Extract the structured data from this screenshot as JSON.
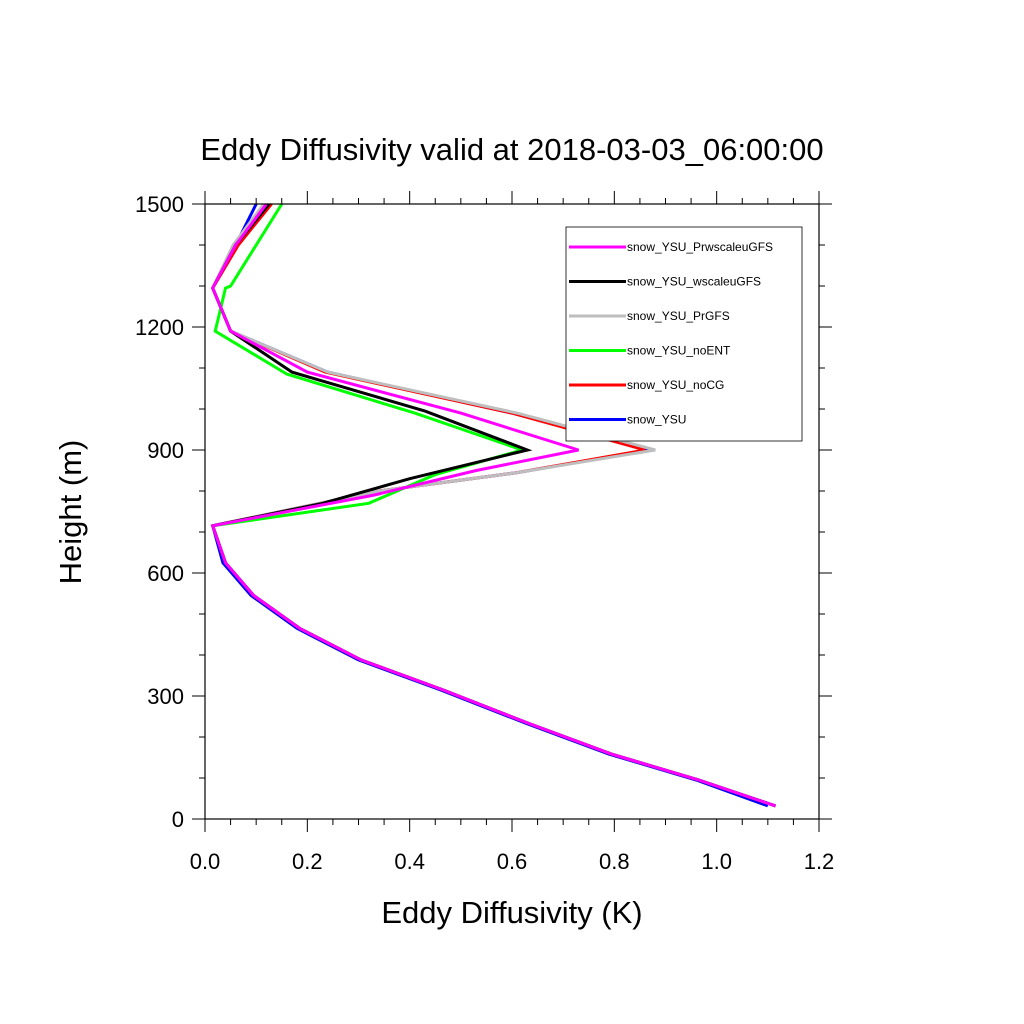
{
  "chart_data": {
    "type": "line",
    "title": "Eddy Diffusivity valid at 2018-03-03_06:00:00",
    "xlabel": "Eddy Diffusivity (K)",
    "ylabel": "Height (m)",
    "xlim": [
      0.0,
      1.2
    ],
    "ylim": [
      0,
      1500
    ],
    "xticks": [
      "0.0",
      "0.2",
      "0.4",
      "0.6",
      "0.8",
      "1.0",
      "1.2"
    ],
    "yticks": [
      "0",
      "300",
      "600",
      "900",
      "1200",
      "1500"
    ],
    "grid": false,
    "legend_position": "top-right",
    "series": [
      {
        "name": "snow_YSU",
        "color": "#0000ff",
        "x": [
          1.1,
          0.96,
          0.79,
          0.63,
          0.46,
          0.3,
          0.18,
          0.09,
          0.035,
          0.015,
          0.34,
          0.61,
          0.87,
          0.6,
          0.24,
          0.05,
          0.015,
          0.06,
          0.1
        ],
        "y": [
          32,
          95,
          158,
          232,
          315,
          388,
          465,
          545,
          625,
          715,
          800,
          845,
          900,
          990,
          1090,
          1190,
          1295,
          1400,
          1500
        ]
      },
      {
        "name": "snow_YSU_noCG",
        "color": "#ff0000",
        "x": [
          1.115,
          0.965,
          0.795,
          0.635,
          0.465,
          0.305,
          0.185,
          0.095,
          0.04,
          0.015,
          0.34,
          0.61,
          0.86,
          0.6,
          0.235,
          0.05,
          0.015,
          0.065,
          0.13
        ],
        "y": [
          32,
          95,
          158,
          232,
          315,
          388,
          465,
          545,
          625,
          715,
          800,
          845,
          900,
          990,
          1090,
          1190,
          1295,
          1400,
          1500
        ]
      },
      {
        "name": "snow_YSU_noENT",
        "color": "#00ff00",
        "x": [
          1.115,
          0.965,
          0.795,
          0.635,
          0.465,
          0.305,
          0.185,
          0.095,
          0.04,
          0.015,
          0.32,
          0.45,
          0.62,
          0.41,
          0.16,
          0.02,
          0.04,
          0.05,
          0.15
        ],
        "y": [
          32,
          95,
          158,
          232,
          315,
          388,
          465,
          545,
          625,
          715,
          770,
          840,
          900,
          990,
          1085,
          1190,
          1295,
          1300,
          1500
        ]
      },
      {
        "name": "snow_YSU_PrGFS",
        "color": "#bebebe",
        "x": [
          1.115,
          0.965,
          0.795,
          0.635,
          0.465,
          0.305,
          0.185,
          0.095,
          0.04,
          0.015,
          0.34,
          0.61,
          0.88,
          0.61,
          0.24,
          0.05,
          0.015,
          0.055,
          0.115
        ],
        "y": [
          32,
          95,
          158,
          232,
          315,
          388,
          465,
          545,
          625,
          715,
          800,
          845,
          900,
          990,
          1090,
          1190,
          1295,
          1400,
          1500
        ]
      },
      {
        "name": "snow_YSU_wscaleuGFS",
        "color": "#000000",
        "x": [
          1.115,
          0.965,
          0.795,
          0.635,
          0.465,
          0.305,
          0.185,
          0.095,
          0.04,
          0.015,
          0.23,
          0.4,
          0.63,
          0.43,
          0.17,
          0.05,
          0.015,
          0.06,
          0.125
        ],
        "y": [
          32,
          95,
          158,
          232,
          315,
          388,
          465,
          545,
          625,
          715,
          770,
          830,
          900,
          995,
          1090,
          1190,
          1295,
          1400,
          1500
        ]
      },
      {
        "name": "snow_YSU_PrwscaleuGFS",
        "color": "#ff00ff",
        "x": [
          1.115,
          0.965,
          0.795,
          0.635,
          0.465,
          0.305,
          0.185,
          0.095,
          0.04,
          0.015,
          0.33,
          0.53,
          0.73,
          0.5,
          0.2,
          0.05,
          0.015,
          0.06,
          0.12
        ],
        "y": [
          32,
          95,
          158,
          232,
          315,
          388,
          465,
          545,
          625,
          715,
          790,
          850,
          900,
          990,
          1090,
          1190,
          1295,
          1400,
          1500
        ]
      }
    ],
    "legend_order": [
      "snow_YSU_PrwscaleuGFS",
      "snow_YSU_wscaleuGFS",
      "snow_YSU_PrGFS",
      "snow_YSU_noENT",
      "snow_YSU_noCG",
      "snow_YSU"
    ]
  }
}
